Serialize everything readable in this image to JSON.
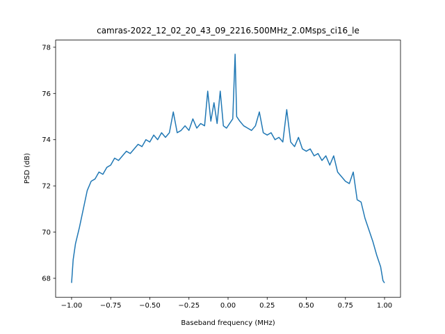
{
  "chart_data": {
    "type": "line",
    "title": "camras-2022_12_02_20_43_09_2216.500MHz_2.0Msps_ci16_le",
    "x_label": "Baseband frequency (MHz)",
    "y_label": "PSD (dB)",
    "xlim": [
      -1.102,
      1.102
    ],
    "ylim": [
      67.18,
      78.31
    ],
    "xticks": [
      {
        "value": -1,
        "label": "−1.00"
      },
      {
        "value": -0.75,
        "label": "−0.75"
      },
      {
        "value": -0.5,
        "label": "−0.50"
      },
      {
        "value": -0.25,
        "label": "−0.25"
      },
      {
        "value": 0,
        "label": "0.00"
      },
      {
        "value": 0.25,
        "label": "0.25"
      },
      {
        "value": 0.5,
        "label": "0.50"
      },
      {
        "value": 0.75,
        "label": "0.75"
      },
      {
        "value": 1,
        "label": "1.00"
      }
    ],
    "yticks": [
      68,
      70,
      72,
      74,
      76,
      78
    ],
    "x": [
      -1.0,
      -0.99,
      -0.975,
      -0.95,
      -0.925,
      -0.9,
      -0.875,
      -0.85,
      -0.825,
      -0.8,
      -0.775,
      -0.75,
      -0.725,
      -0.7,
      -0.675,
      -0.65,
      -0.625,
      -0.6,
      -0.575,
      -0.55,
      -0.525,
      -0.5,
      -0.475,
      -0.45,
      -0.425,
      -0.4,
      -0.375,
      -0.35,
      -0.325,
      -0.3,
      -0.275,
      -0.25,
      -0.225,
      -0.2,
      -0.175,
      -0.15,
      -0.13,
      -0.11,
      -0.09,
      -0.07,
      -0.05,
      -0.03,
      -0.01,
      0.01,
      0.03,
      0.045,
      0.055,
      0.075,
      0.1,
      0.125,
      0.15,
      0.175,
      0.2,
      0.225,
      0.25,
      0.275,
      0.3,
      0.325,
      0.35,
      0.375,
      0.4,
      0.425,
      0.45,
      0.475,
      0.5,
      0.525,
      0.55,
      0.575,
      0.6,
      0.625,
      0.65,
      0.675,
      0.7,
      0.725,
      0.75,
      0.775,
      0.8,
      0.825,
      0.85,
      0.875,
      0.9,
      0.925,
      0.95,
      0.975,
      0.99,
      1.0
    ],
    "series": [
      {
        "color": "#1f77b4",
        "values": [
          67.8,
          68.8,
          69.5,
          70.2,
          71.0,
          71.8,
          72.2,
          72.3,
          72.6,
          72.5,
          72.8,
          72.9,
          73.2,
          73.1,
          73.3,
          73.5,
          73.4,
          73.6,
          73.8,
          73.7,
          74.0,
          73.9,
          74.2,
          74.0,
          74.3,
          74.1,
          74.3,
          75.2,
          74.3,
          74.4,
          74.6,
          74.4,
          74.9,
          74.5,
          74.7,
          74.6,
          76.1,
          74.8,
          75.6,
          74.7,
          76.1,
          74.6,
          74.5,
          74.7,
          74.9,
          77.7,
          75.0,
          74.8,
          74.6,
          74.5,
          74.4,
          74.6,
          75.2,
          74.3,
          74.2,
          74.3,
          74.0,
          74.1,
          73.9,
          75.3,
          73.9,
          73.7,
          74.1,
          73.6,
          73.5,
          73.6,
          73.3,
          73.4,
          73.1,
          73.3,
          72.9,
          73.3,
          72.6,
          72.4,
          72.2,
          72.1,
          72.6,
          71.4,
          71.3,
          70.6,
          70.1,
          69.6,
          69.0,
          68.5,
          67.9,
          67.8
        ]
      }
    ]
  }
}
